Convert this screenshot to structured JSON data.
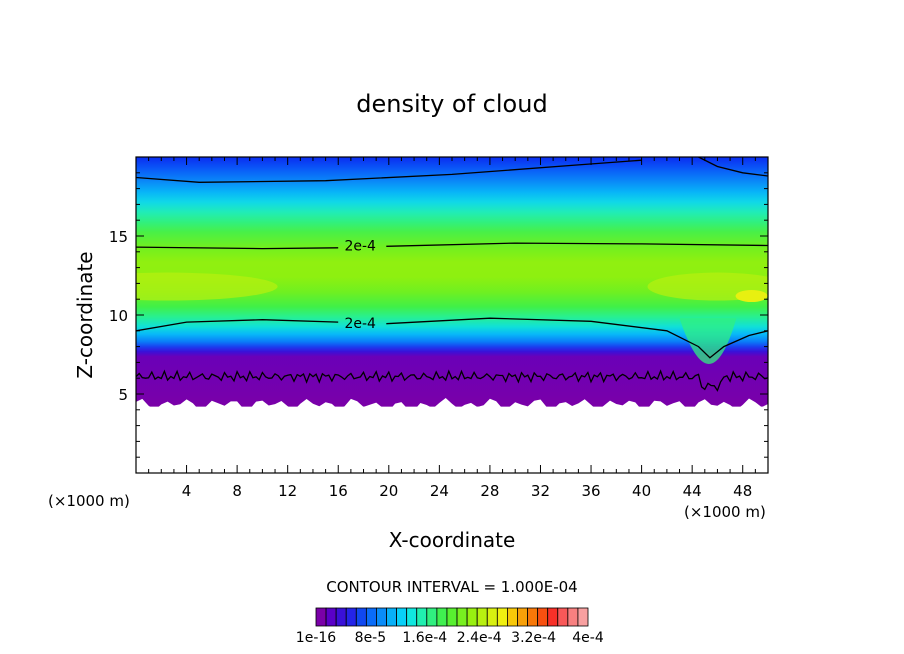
{
  "chart_data": {
    "type": "heatmap",
    "title": "density of cloud",
    "xlabel": "X-coordinate",
    "ylabel": "Z-coordinate",
    "x_unit": "(×1000 m)",
    "y_unit": "(×1000 m)",
    "xlim": [
      0,
      50
    ],
    "ylim": [
      0,
      20
    ],
    "x_ticks": [
      4,
      8,
      12,
      16,
      20,
      24,
      28,
      32,
      36,
      40,
      44,
      48
    ],
    "y_ticks": [
      5,
      10,
      15
    ],
    "contour_interval_label": "CONTOUR INTERVAL = 1.000E-04",
    "contour_labels": [
      {
        "text": "2e-4",
        "x": 17.5,
        "z": 14.4
      },
      {
        "text": "2e-4",
        "x": 17.5,
        "z": 9.5
      }
    ],
    "colorbar": {
      "colors": [
        "#7a00a8",
        "#5a00c8",
        "#3a10d8",
        "#2424e8",
        "#1048f0",
        "#0a6cf8",
        "#0a8cf8",
        "#08b0f8",
        "#08d0f8",
        "#10e8e0",
        "#20f0b0",
        "#30f080",
        "#40f050",
        "#58f030",
        "#78f020",
        "#98f010",
        "#b8f010",
        "#d8f010",
        "#f0f010",
        "#f8c808",
        "#f8a008",
        "#f87808",
        "#f85010",
        "#f83028",
        "#f85858",
        "#f88080",
        "#f8a0a0"
      ],
      "tick_labels": [
        "1e-16",
        "8e-5",
        "1.6e-4",
        "2.4e-4",
        "3.2e-4",
        "4e-4"
      ],
      "min": 0,
      "max": 0.0004
    },
    "grid": false
  }
}
